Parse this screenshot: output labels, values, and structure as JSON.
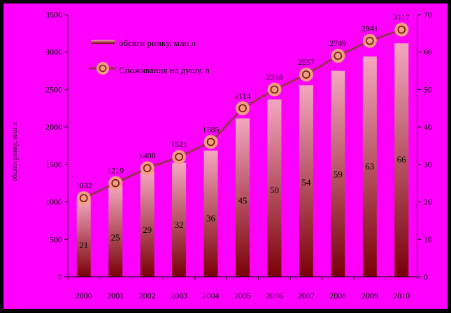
{
  "colors": {
    "frame": "#000000",
    "background": "#ff00ff",
    "bar_top": "#f4a6c0",
    "bar_bottom": "#7a0008",
    "line": "#9a2f55",
    "marker_fill": "#f0a080",
    "marker_ring": "#7a1a1a",
    "axis": "#000000",
    "text": "#000000"
  },
  "chart_data": {
    "type": "bar+line",
    "categories": [
      "2000",
      "2001",
      "2002",
      "2003",
      "2004",
      "2005",
      "2006",
      "2007",
      "2008",
      "2009",
      "2010"
    ],
    "series": [
      {
        "name": "обсяги ринку, млн л",
        "type": "bar",
        "axis": "left",
        "values": [
          1032,
          1219,
          1408,
          1521,
          1685,
          2114,
          2368,
          2557,
          2749,
          2941,
          3117
        ]
      },
      {
        "name": "Споживання на душу, л",
        "type": "line",
        "axis": "right",
        "values": [
          21,
          25,
          29,
          32,
          36,
          45,
          50,
          54,
          59,
          63,
          66
        ]
      }
    ],
    "ylabel": "обсяги ринку, млн л",
    "ylim": [
      0,
      3500
    ],
    "yticks": [
      0,
      500,
      1000,
      1500,
      2000,
      2500,
      3000,
      3500
    ],
    "y2lim": [
      0,
      70
    ],
    "y2ticks": [
      0,
      10,
      20,
      30,
      40,
      50,
      60,
      70
    ],
    "legend_position": "top-left",
    "grid": false
  }
}
